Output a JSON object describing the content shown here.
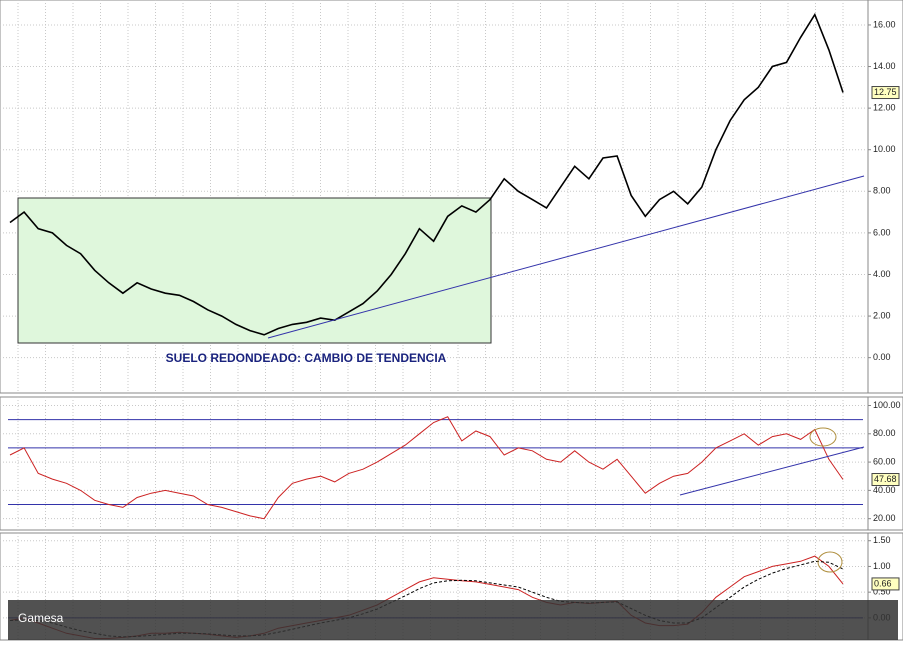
{
  "chart_data": [
    {
      "type": "line",
      "annotation": "SUELO REDONDEADO: CAMBIO DE TENDENCIA",
      "categories": [
        null,
        null,
        null,
        null,
        null,
        null,
        null,
        null,
        null,
        null,
        null,
        null,
        null,
        null,
        null,
        null,
        null,
        null,
        null,
        null,
        null,
        null,
        null,
        null,
        null,
        null,
        null,
        null,
        null,
        null,
        null,
        null,
        null,
        null,
        null,
        null,
        null,
        null,
        null,
        null,
        null,
        null,
        null,
        null,
        null,
        null,
        null,
        null,
        null,
        null,
        null,
        null,
        null,
        null,
        null,
        null,
        null,
        null,
        null,
        null
      ],
      "series": [
        {
          "color": "#000000",
          "values": [
            6.5,
            7.0,
            6.2,
            6.0,
            5.4,
            5.0,
            4.2,
            3.6,
            3.1,
            3.6,
            3.3,
            3.1,
            3.0,
            2.7,
            2.3,
            2.0,
            1.6,
            1.3,
            1.1,
            1.4,
            1.6,
            1.7,
            1.9,
            1.8,
            2.2,
            2.6,
            3.2,
            4.0,
            5.0,
            6.2,
            5.6,
            6.8,
            7.3,
            7.0,
            7.6,
            8.6,
            8.0,
            7.6,
            7.2,
            8.2,
            9.2,
            8.6,
            9.6,
            9.7,
            7.8,
            6.8,
            7.6,
            8.0,
            7.4,
            8.2,
            10.0,
            11.4,
            12.4,
            13.0,
            14.0,
            14.2,
            15.4,
            16.5,
            14.8,
            12.75
          ]
        }
      ],
      "ylim": [
        -1.7,
        17.2
      ],
      "yticks": [
        {
          "value": 0,
          "label": "0.00"
        },
        {
          "value": 2,
          "label": "2.00"
        },
        {
          "value": 4,
          "label": "4.00"
        },
        {
          "value": 6,
          "label": "6.00"
        },
        {
          "value": 8,
          "label": "8.00"
        },
        {
          "value": 10,
          "label": "10.00"
        },
        {
          "value": 12,
          "label": "12.00"
        },
        {
          "value": 14,
          "label": "14.00"
        },
        {
          "value": 16,
          "label": "16.00"
        }
      ],
      "grid": true
    },
    {
      "type": "line",
      "categories": [
        null,
        null,
        null,
        null,
        null,
        null,
        null,
        null,
        null,
        null,
        null,
        null,
        null,
        null,
        null,
        null,
        null,
        null,
        null,
        null,
        null,
        null,
        null,
        null,
        null,
        null,
        null,
        null,
        null,
        null,
        null,
        null,
        null,
        null,
        null,
        null,
        null,
        null,
        null,
        null,
        null,
        null,
        null,
        null,
        null,
        null,
        null,
        null,
        null,
        null,
        null,
        null,
        null,
        null,
        null,
        null,
        null,
        null,
        null,
        null
      ],
      "series": [
        {
          "color": "#cc2222",
          "values": [
            65,
            70,
            52,
            48,
            45,
            40,
            33,
            30,
            28,
            35,
            38,
            40,
            38,
            36,
            30,
            28,
            25,
            22,
            20,
            35,
            45,
            48,
            50,
            46,
            52,
            55,
            60,
            66,
            72,
            80,
            88,
            92,
            75,
            82,
            78,
            65,
            70,
            68,
            62,
            60,
            68,
            60,
            55,
            62,
            50,
            38,
            45,
            50,
            52,
            60,
            70,
            75,
            80,
            72,
            78,
            80,
            76,
            83,
            62,
            47.68
          ]
        }
      ],
      "reference_lines": [
        30,
        70,
        90
      ],
      "ylim": [
        12,
        106
      ],
      "yticks": [
        {
          "value": 20,
          "label": "20.00"
        },
        {
          "value": 40,
          "label": "40.00"
        },
        {
          "value": 60,
          "label": "60.00"
        },
        {
          "value": 80,
          "label": "80.00"
        },
        {
          "value": 100,
          "label": "100.00"
        }
      ],
      "grid": true
    },
    {
      "type": "line",
      "annotation": "Gamesa",
      "categories": [
        null,
        null,
        null,
        null,
        null,
        null,
        null,
        null,
        null,
        null,
        null,
        null,
        null,
        null,
        null,
        null,
        null,
        null,
        null,
        null,
        null,
        null,
        null,
        null,
        null,
        null,
        null,
        null,
        null,
        null,
        null,
        null,
        null,
        null,
        null,
        null,
        null,
        null,
        null,
        null,
        null,
        null,
        null,
        null,
        null,
        null,
        null,
        null,
        null,
        null,
        null,
        null,
        null,
        null,
        null,
        null,
        null,
        null,
        null,
        null
      ],
      "series": [
        {
          "color": "#cc2222",
          "values": [
            -0.05,
            0.0,
            -0.1,
            -0.2,
            -0.3,
            -0.35,
            -0.4,
            -0.4,
            -0.38,
            -0.35,
            -0.3,
            -0.3,
            -0.28,
            -0.3,
            -0.32,
            -0.35,
            -0.38,
            -0.35,
            -0.3,
            -0.2,
            -0.15,
            -0.1,
            -0.05,
            0.0,
            0.05,
            0.15,
            0.25,
            0.4,
            0.55,
            0.7,
            0.78,
            0.75,
            0.72,
            0.7,
            0.65,
            0.6,
            0.55,
            0.4,
            0.3,
            0.25,
            0.3,
            0.28,
            0.3,
            0.32,
            0.05,
            -0.1,
            -0.15,
            -0.15,
            -0.12,
            0.1,
            0.4,
            0.6,
            0.8,
            0.9,
            1.0,
            1.05,
            1.1,
            1.2,
            1.0,
            0.66
          ]
        },
        {
          "color": "#000000",
          "dashed": true,
          "values": [
            -0.05,
            -0.04,
            -0.05,
            -0.1,
            -0.18,
            -0.25,
            -0.3,
            -0.35,
            -0.37,
            -0.36,
            -0.34,
            -0.32,
            -0.3,
            -0.3,
            -0.31,
            -0.33,
            -0.35,
            -0.35,
            -0.33,
            -0.28,
            -0.22,
            -0.16,
            -0.1,
            -0.05,
            0.0,
            0.08,
            0.17,
            0.3,
            0.43,
            0.57,
            0.68,
            0.72,
            0.73,
            0.72,
            0.68,
            0.64,
            0.6,
            0.5,
            0.4,
            0.32,
            0.3,
            0.29,
            0.3,
            0.31,
            0.18,
            0.05,
            -0.05,
            -0.1,
            -0.1,
            0.0,
            0.2,
            0.4,
            0.6,
            0.75,
            0.87,
            0.96,
            1.03,
            1.1,
            1.08,
            0.95
          ]
        }
      ],
      "reference_lines": [
        0
      ],
      "ylim": [
        -0.43,
        1.65
      ],
      "yticks": [
        {
          "value": 0,
          "label": "0.00"
        },
        {
          "value": 0.5,
          "label": "0.50"
        },
        {
          "value": 1,
          "label": "1.00"
        },
        {
          "value": 1.5,
          "label": "1.50"
        }
      ],
      "grid": true
    }
  ]
}
